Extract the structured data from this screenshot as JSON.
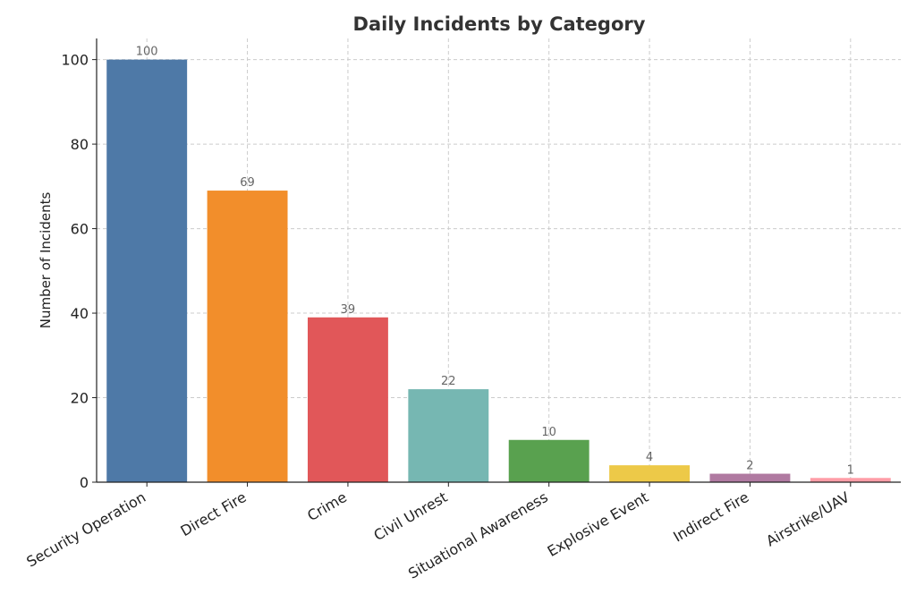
{
  "chart_data": {
    "type": "bar",
    "title": "Daily Incidents by Category",
    "xlabel": "",
    "ylabel": "Number of Incidents",
    "categories": [
      "Security Operation",
      "Direct Fire",
      "Crime",
      "Civil Unrest",
      "Situational Awareness",
      "Explosive Event",
      "Indirect Fire",
      "Airstrike/UAV"
    ],
    "values": [
      100,
      69,
      39,
      22,
      10,
      4,
      2,
      1
    ],
    "colors": [
      "#4e79a7",
      "#f28e2b",
      "#e15759",
      "#76b7b2",
      "#59a14f",
      "#edc948",
      "#b07aa1",
      "#ff9da7"
    ],
    "ylim": [
      0,
      105
    ],
    "yticks": [
      0,
      20,
      40,
      60,
      80,
      100
    ],
    "grid": true,
    "data_labels": true
  }
}
